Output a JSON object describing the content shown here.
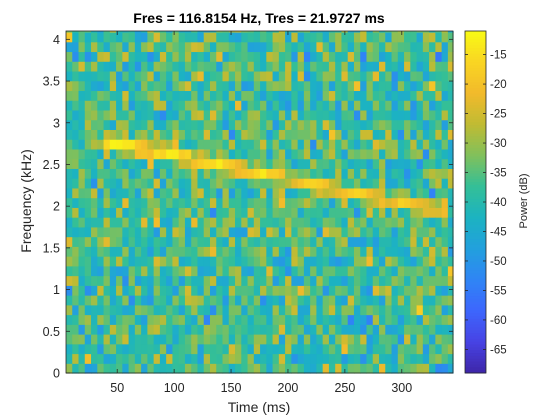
{
  "chart_data": {
    "type": "heatmap",
    "title": "Fres = 116.8154 Hz, Tres = 21.9727 ms",
    "xlabel": "Time (ms)",
    "ylabel": "Frequency (kHz)",
    "colorbar_label": "Power (dB)",
    "xlim": [
      5,
      345
    ],
    "ylim": [
      0,
      4.1
    ],
    "clim": [
      -69,
      -11
    ],
    "colormap": "parula",
    "grid": false,
    "x_ticks": [
      50,
      100,
      150,
      200,
      250,
      300
    ],
    "y_ticks": [
      0,
      0.5,
      1,
      1.5,
      2,
      2.5,
      3,
      3.5,
      4
    ],
    "colorbar_ticks": [
      -15,
      -20,
      -25,
      -30,
      -35,
      -40,
      -45,
      -50,
      -55,
      -60,
      -65
    ],
    "time_bin_ms": 5.5,
    "freq_bin_khz": 0.1168154,
    "background_power_db": -37,
    "chirp": {
      "start_time_ms": 35,
      "end_time_ms": 335,
      "start_freq_khz": 2.8,
      "end_freq_khz": 1.95,
      "peak_power_db": -12,
      "end_power_db": -20
    },
    "colors": {
      "parula_stops": [
        "#3e26a8",
        "#4743e4",
        "#3d66fd",
        "#2f85f5",
        "#22a0dd",
        "#1cb3c1",
        "#34bf97",
        "#81c05b",
        "#c0bb33",
        "#f2ba2b",
        "#f9d523",
        "#f9fb15"
      ]
    }
  }
}
